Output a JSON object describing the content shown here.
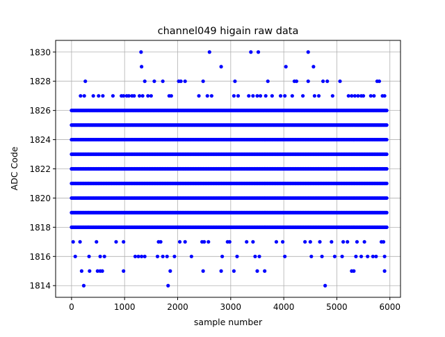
{
  "chart_data": {
    "type": "scatter",
    "title": "channel049 higain raw data",
    "xlabel": "sample number",
    "ylabel": "ADC Code",
    "xlim": [
      -300,
      6200
    ],
    "ylim": [
      1813.2,
      1830.8
    ],
    "x_ticks": [
      0,
      1000,
      2000,
      3000,
      4000,
      5000,
      6000
    ],
    "x_tick_labels": [
      "0",
      "1000",
      "2000",
      "3000",
      "4000",
      "5000",
      "6000"
    ],
    "y_ticks": [
      1814,
      1816,
      1818,
      1820,
      1822,
      1824,
      1826,
      1828,
      1830
    ],
    "y_tick_labels": [
      "1814",
      "1816",
      "1818",
      "1820",
      "1822",
      "1824",
      "1826",
      "1828",
      "1830"
    ],
    "grid": true,
    "marker_color": "#0000ff",
    "dense_levels": [
      1818,
      1819,
      1820,
      1821,
      1822,
      1823,
      1824,
      1825,
      1826
    ],
    "x_range": [
      0,
      5950
    ],
    "sparse_points": [
      [
        1310,
        1830
      ],
      [
        2600,
        1830
      ],
      [
        3380,
        1830
      ],
      [
        3520,
        1830
      ],
      [
        4460,
        1830
      ],
      [
        1320,
        1829
      ],
      [
        2820,
        1829
      ],
      [
        4040,
        1829
      ],
      [
        4560,
        1829
      ],
      [
        260,
        1828
      ],
      [
        1380,
        1828
      ],
      [
        1560,
        1828
      ],
      [
        1720,
        1828
      ],
      [
        2020,
        1828
      ],
      [
        2060,
        1828
      ],
      [
        2140,
        1828
      ],
      [
        2480,
        1828
      ],
      [
        3080,
        1828
      ],
      [
        3700,
        1828
      ],
      [
        4200,
        1828
      ],
      [
        4240,
        1828
      ],
      [
        4460,
        1828
      ],
      [
        4740,
        1828
      ],
      [
        4820,
        1828
      ],
      [
        5060,
        1828
      ],
      [
        5760,
        1828
      ],
      [
        5800,
        1828
      ],
      [
        170,
        1827
      ],
      [
        240,
        1827
      ],
      [
        410,
        1827
      ],
      [
        510,
        1827
      ],
      [
        590,
        1827
      ],
      [
        780,
        1827
      ],
      [
        940,
        1827
      ],
      [
        980,
        1827
      ],
      [
        1040,
        1827
      ],
      [
        1080,
        1827
      ],
      [
        1140,
        1827
      ],
      [
        1180,
        1827
      ],
      [
        1280,
        1827
      ],
      [
        1340,
        1827
      ],
      [
        1440,
        1827
      ],
      [
        1500,
        1827
      ],
      [
        1840,
        1827
      ],
      [
        1880,
        1827
      ],
      [
        2400,
        1827
      ],
      [
        2560,
        1827
      ],
      [
        2640,
        1827
      ],
      [
        3060,
        1827
      ],
      [
        3140,
        1827
      ],
      [
        3340,
        1827
      ],
      [
        3420,
        1827
      ],
      [
        3500,
        1827
      ],
      [
        3560,
        1827
      ],
      [
        3660,
        1827
      ],
      [
        3780,
        1827
      ],
      [
        3940,
        1827
      ],
      [
        4020,
        1827
      ],
      [
        4160,
        1827
      ],
      [
        4360,
        1827
      ],
      [
        4580,
        1827
      ],
      [
        4660,
        1827
      ],
      [
        4920,
        1827
      ],
      [
        5220,
        1827
      ],
      [
        5280,
        1827
      ],
      [
        5340,
        1827
      ],
      [
        5400,
        1827
      ],
      [
        5460,
        1827
      ],
      [
        5500,
        1827
      ],
      [
        5640,
        1827
      ],
      [
        5700,
        1827
      ],
      [
        5860,
        1827
      ],
      [
        5900,
        1827
      ],
      [
        30,
        1817
      ],
      [
        160,
        1817
      ],
      [
        470,
        1817
      ],
      [
        840,
        1817
      ],
      [
        980,
        1817
      ],
      [
        1640,
        1817
      ],
      [
        1680,
        1817
      ],
      [
        2040,
        1817
      ],
      [
        2140,
        1817
      ],
      [
        2460,
        1817
      ],
      [
        2500,
        1817
      ],
      [
        2580,
        1817
      ],
      [
        2940,
        1817
      ],
      [
        2980,
        1817
      ],
      [
        3300,
        1817
      ],
      [
        3420,
        1817
      ],
      [
        3860,
        1817
      ],
      [
        3980,
        1817
      ],
      [
        4400,
        1817
      ],
      [
        4500,
        1817
      ],
      [
        4680,
        1817
      ],
      [
        4900,
        1817
      ],
      [
        5120,
        1817
      ],
      [
        5200,
        1817
      ],
      [
        5380,
        1817
      ],
      [
        5520,
        1817
      ],
      [
        5840,
        1817
      ],
      [
        5880,
        1817
      ],
      [
        70,
        1816
      ],
      [
        330,
        1816
      ],
      [
        540,
        1816
      ],
      [
        620,
        1816
      ],
      [
        1200,
        1816
      ],
      [
        1260,
        1816
      ],
      [
        1320,
        1816
      ],
      [
        1380,
        1816
      ],
      [
        1620,
        1816
      ],
      [
        1720,
        1816
      ],
      [
        1800,
        1816
      ],
      [
        1940,
        1816
      ],
      [
        2260,
        1816
      ],
      [
        2840,
        1816
      ],
      [
        3120,
        1816
      ],
      [
        3460,
        1816
      ],
      [
        3540,
        1816
      ],
      [
        4020,
        1816
      ],
      [
        4520,
        1816
      ],
      [
        4720,
        1816
      ],
      [
        4960,
        1816
      ],
      [
        5100,
        1816
      ],
      [
        5360,
        1816
      ],
      [
        5460,
        1816
      ],
      [
        5580,
        1816
      ],
      [
        5680,
        1816
      ],
      [
        5740,
        1816
      ],
      [
        5900,
        1816
      ],
      [
        190,
        1815
      ],
      [
        340,
        1815
      ],
      [
        490,
        1815
      ],
      [
        540,
        1815
      ],
      [
        580,
        1815
      ],
      [
        980,
        1815
      ],
      [
        1860,
        1815
      ],
      [
        2480,
        1815
      ],
      [
        2820,
        1815
      ],
      [
        3060,
        1815
      ],
      [
        3500,
        1815
      ],
      [
        3640,
        1815
      ],
      [
        5280,
        1815
      ],
      [
        5320,
        1815
      ],
      [
        5900,
        1815
      ],
      [
        230,
        1814
      ],
      [
        1820,
        1814
      ],
      [
        4780,
        1814
      ]
    ]
  }
}
